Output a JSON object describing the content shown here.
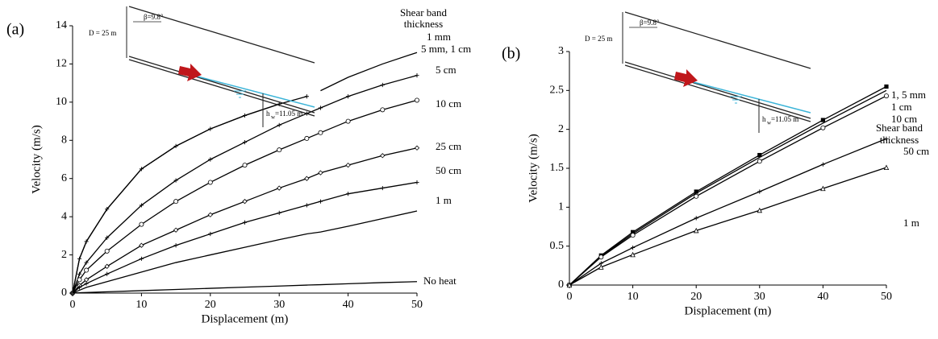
{
  "chart_data": [
    {
      "type": "line",
      "panel_label": "(a)",
      "x_label": "Displacement (m)",
      "y_label": "Velocity (m/s)",
      "legend_title": [
        "Shear band",
        "thickness"
      ],
      "inset": {
        "depth": "D = 25 m",
        "angle": "β=9.8°",
        "water_symbol": "h",
        "water_subscript": "w",
        "water_value": "=11.05 m"
      },
      "x": [
        0,
        1,
        2,
        5,
        10,
        15,
        20,
        25,
        30,
        34,
        36,
        40,
        45,
        50
      ],
      "xlim": [
        0,
        50
      ],
      "xticks": [
        0,
        10,
        20,
        30,
        40,
        50
      ],
      "ylim": [
        0,
        14
      ],
      "yticks": [
        0,
        2,
        4,
        6,
        8,
        10,
        12,
        14
      ],
      "series": [
        {
          "name": "1 mm",
          "color": "#000000",
          "marker": "plus",
          "values": [
            0,
            1.8,
            2.7,
            4.4,
            6.5,
            7.7,
            8.6,
            9.3,
            9.9,
            10.3,
            null,
            null,
            null,
            null
          ]
        },
        {
          "name": "5 mm, 1 cm",
          "color": "#000000",
          "marker": "none",
          "values": [
            0,
            1.8,
            2.7,
            4.4,
            6.5,
            7.7,
            8.6,
            9.3,
            9.9,
            null,
            10.6,
            11.3,
            12.0,
            12.6
          ]
        },
        {
          "name": "5 cm",
          "color": "#000000",
          "marker": "plus",
          "values": [
            0,
            1.0,
            1.6,
            2.9,
            4.6,
            5.9,
            7.0,
            7.9,
            8.8,
            9.4,
            9.7,
            10.3,
            10.9,
            11.4
          ]
        },
        {
          "name": "10 cm",
          "color": "#000000",
          "marker": "circle",
          "values": [
            0,
            0.7,
            1.2,
            2.2,
            3.6,
            4.8,
            5.8,
            6.7,
            7.5,
            8.1,
            8.4,
            9.0,
            9.6,
            10.1
          ]
        },
        {
          "name": "25 cm",
          "color": "#000000",
          "marker": "diamond",
          "values": [
            0,
            0.4,
            0.7,
            1.4,
            2.5,
            3.3,
            4.1,
            4.8,
            5.5,
            6.0,
            6.3,
            6.7,
            7.2,
            7.6
          ]
        },
        {
          "name": "50 cm",
          "color": "#000000",
          "marker": "plus",
          "values": [
            0,
            0.3,
            0.5,
            1.0,
            1.8,
            2.5,
            3.1,
            3.7,
            4.2,
            4.6,
            4.8,
            5.2,
            5.5,
            5.8
          ]
        },
        {
          "name": "1 m",
          "color": "#000000",
          "marker": "none",
          "values": [
            0,
            0.15,
            0.3,
            0.6,
            1.1,
            1.6,
            2.0,
            2.4,
            2.8,
            3.1,
            3.2,
            3.5,
            3.9,
            4.3
          ]
        },
        {
          "name": "No heat",
          "color": "#000000",
          "marker": "none",
          "values": [
            0,
            0.02,
            0.03,
            0.07,
            0.13,
            0.19,
            0.25,
            0.31,
            0.37,
            0.42,
            0.44,
            0.49,
            0.55,
            0.6
          ]
        }
      ]
    },
    {
      "type": "line",
      "panel_label": "(b)",
      "x_label": "Displacement (m)",
      "y_label": "Velocity (m/s)",
      "legend_title": [
        "Shear band",
        "thickness"
      ],
      "inset": {
        "depth": "D = 25 m",
        "angle": "β=9.8°",
        "water_symbol": "h",
        "water_subscript": "w",
        "water_value": "=11.05 m"
      },
      "x": [
        0,
        5,
        10,
        20,
        30,
        40,
        50
      ],
      "xlim": [
        0,
        50
      ],
      "xticks": [
        0,
        10,
        20,
        30,
        40,
        50
      ],
      "ylim": [
        0,
        3
      ],
      "yticks": [
        0,
        0.5,
        1,
        1.5,
        2,
        2.5,
        3
      ],
      "series": [
        {
          "name": "1, 5 mm",
          "color": "#000000",
          "marker": "square",
          "values": [
            0,
            0.38,
            0.68,
            1.2,
            1.67,
            2.12,
            2.55
          ]
        },
        {
          "name": "1 cm",
          "color": "#000000",
          "marker": "none",
          "values": [
            0,
            0.37,
            0.66,
            1.18,
            1.64,
            2.08,
            2.5
          ]
        },
        {
          "name": "10 cm",
          "color": "#000000",
          "marker": "circle",
          "values": [
            0,
            0.36,
            0.64,
            1.14,
            1.59,
            2.02,
            2.43
          ]
        },
        {
          "name": "50 cm",
          "color": "#000000",
          "marker": "plus",
          "values": [
            0,
            0.28,
            0.48,
            0.86,
            1.2,
            1.55,
            1.88
          ]
        },
        {
          "name": "1 m",
          "color": "#000000",
          "marker": "triangle",
          "values": [
            0,
            0.23,
            0.39,
            0.7,
            0.96,
            1.24,
            1.51
          ]
        }
      ]
    }
  ]
}
